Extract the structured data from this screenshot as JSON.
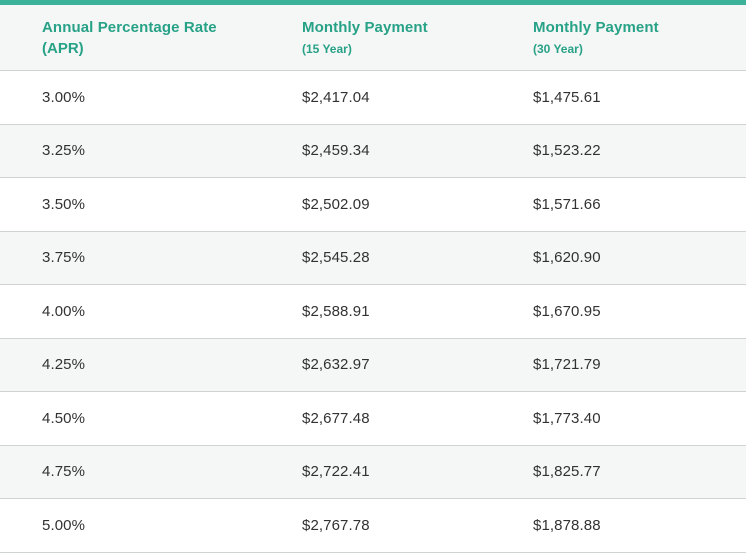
{
  "theme": {
    "accent": "#3cb29a",
    "header_text": "#27a287",
    "header_bg": "#f5f6f6",
    "alt_row_bg": "#f5f6f6",
    "row_border": "#d0d3d3",
    "body_text": "#323232"
  },
  "chart_data": {
    "type": "table",
    "title": "",
    "columns": [
      {
        "label": "Annual Percentage Rate",
        "sublabel": "(APR)"
      },
      {
        "label": "Monthly Payment",
        "sublabel": "(15 Year)"
      },
      {
        "label": "Monthly Payment",
        "sublabel": "(30 Year)"
      }
    ],
    "rows": [
      [
        "3.00%",
        "$2,417.04",
        "$1,475.61"
      ],
      [
        "3.25%",
        "$2,459.34",
        "$1,523.22"
      ],
      [
        "3.50%",
        "$2,502.09",
        "$1,571.66"
      ],
      [
        "3.75%",
        "$2,545.28",
        "$1,620.90"
      ],
      [
        "4.00%",
        "$2,588.91",
        "$1,670.95"
      ],
      [
        "4.25%",
        "$2,632.97",
        "$1,721.79"
      ],
      [
        "4.50%",
        "$2,677.48",
        "$1,773.40"
      ],
      [
        "4.75%",
        "$2,722.41",
        "$1,825.77"
      ],
      [
        "5.00%",
        "$2,767.78",
        "$1,878.88"
      ]
    ]
  }
}
